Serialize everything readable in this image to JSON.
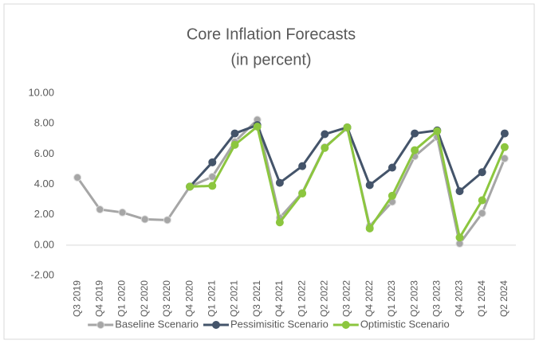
{
  "chart_data": {
    "type": "line",
    "title": "Core Inflation Forecasts",
    "subtitle": "(in percent)",
    "categories": [
      "Q3 2019",
      "Q4 2019",
      "Q1 2020",
      "Q2 2020",
      "Q3 2020",
      "Q4 2020",
      "Q1 2021",
      "Q2 2021",
      "Q3 2021",
      "Q4 2021",
      "Q1 2022",
      "Q2 2022",
      "Q3 2022",
      "Q4 2022",
      "Q1 2023",
      "Q2 2023",
      "Q3 2023",
      "Q4 2023",
      "Q1 2024",
      "Q2 2024"
    ],
    "series": [
      {
        "name": "Baseline Scenario",
        "color": "#a6a6a6",
        "values": [
          4.45,
          2.35,
          2.15,
          1.7,
          1.65,
          3.85,
          4.5,
          6.8,
          8.25,
          1.8,
          3.45,
          6.45,
          7.7,
          1.25,
          2.85,
          5.85,
          7.1,
          0.1,
          2.1,
          5.7
        ]
      },
      {
        "name": "Pessimisitic Scenario",
        "color": "#44546a",
        "values": [
          null,
          null,
          null,
          null,
          null,
          3.85,
          5.45,
          7.35,
          7.9,
          4.1,
          5.2,
          7.3,
          7.75,
          3.95,
          5.1,
          7.35,
          7.55,
          3.55,
          4.8,
          7.35
        ]
      },
      {
        "name": "Optimistic Scenario",
        "color": "#8cc63f",
        "values": [
          null,
          null,
          null,
          null,
          null,
          3.85,
          3.9,
          6.6,
          7.8,
          1.5,
          3.4,
          6.4,
          7.75,
          1.1,
          3.25,
          6.25,
          7.5,
          0.5,
          2.95,
          6.45
        ]
      }
    ],
    "ylim": [
      -2,
      10
    ],
    "yticks": [
      {
        "value": -2,
        "label": "-2.00"
      },
      {
        "value": 0,
        "label": "0.00"
      },
      {
        "value": 2,
        "label": "2.00"
      },
      {
        "value": 4,
        "label": "4.00"
      },
      {
        "value": 6,
        "label": "6.00"
      },
      {
        "value": 8,
        "label": "8.00"
      },
      {
        "value": 10,
        "label": "10.00"
      }
    ],
    "grid": false,
    "legend": "bottom"
  }
}
